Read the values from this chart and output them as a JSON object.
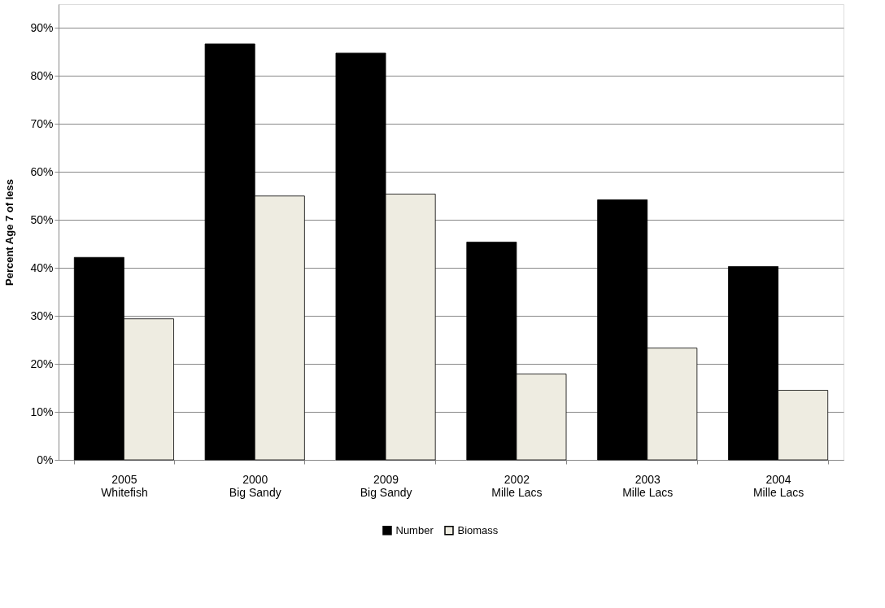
{
  "chart_data": {
    "type": "bar",
    "ylabel": "Percent Age 7 of less",
    "categories": [
      "2005\nWhitefish",
      "2000\nBig Sandy",
      "2009\nBig Sandy",
      "2002\nMille Lacs",
      "2003\nMille Lacs",
      "2004\nMille Lacs"
    ],
    "series": [
      {
        "name": "Number",
        "color": "#000000",
        "values": [
          42.2,
          86.7,
          84.8,
          45.4,
          54.2,
          40.3
        ]
      },
      {
        "name": "Biomass",
        "color": "#eeece1",
        "values": [
          29.4,
          55.0,
          55.4,
          17.9,
          23.3,
          14.5
        ]
      }
    ],
    "ylim": [
      0,
      95
    ],
    "yticks": [
      {
        "value": 0,
        "label": "0%"
      },
      {
        "value": 10,
        "label": "10%"
      },
      {
        "value": 20,
        "label": "20%"
      },
      {
        "value": 30,
        "label": "30%"
      },
      {
        "value": 40,
        "label": "40%"
      },
      {
        "value": 50,
        "label": "50%"
      },
      {
        "value": 60,
        "label": "60%"
      },
      {
        "value": 70,
        "label": "70%"
      },
      {
        "value": 80,
        "label": "80%"
      },
      {
        "value": 90,
        "label": "90%"
      }
    ],
    "grid": "y",
    "legend": "bottom"
  }
}
